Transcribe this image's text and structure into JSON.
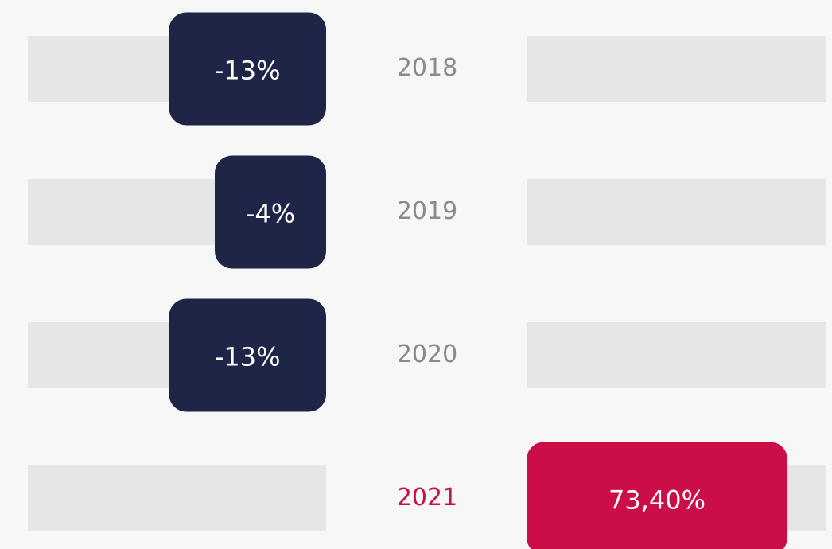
{
  "chart_data": {
    "type": "diverging-bar",
    "categories": [
      "2018",
      "2019",
      "2020",
      "2021"
    ],
    "values": [
      -13,
      -4,
      -13,
      73.4
    ],
    "value_labels": [
      "-13%",
      "-4%",
      "-13%",
      "73,40%"
    ],
    "color": "#1e2547",
    "highlight": "2021",
    "highlight_color": "#cc0e48"
  }
}
